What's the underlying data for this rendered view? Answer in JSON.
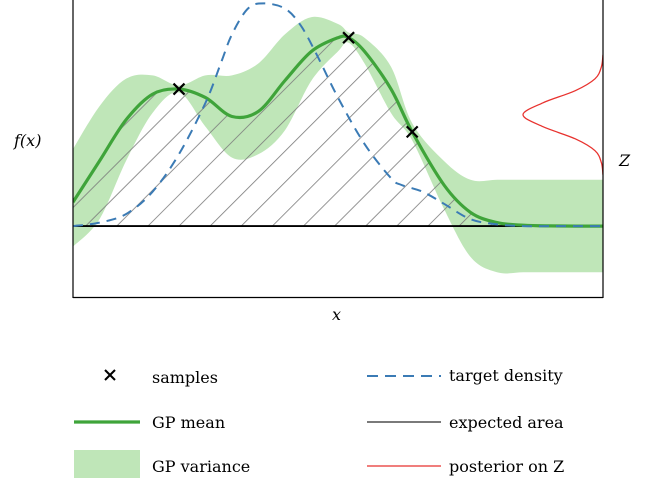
{
  "chart_data": {
    "type": "area",
    "title": "",
    "xlabel": "x",
    "ylabel": "f(x)",
    "side_label": "Z",
    "xlim": [
      0,
      1
    ],
    "ylim": [
      -0.42,
      1.32
    ],
    "baseline": 0,
    "grid": false,
    "legend_position": "bottom",
    "samples": {
      "x": [
        0.2,
        0.52,
        0.64
      ],
      "y": [
        0.8,
        1.1,
        0.55
      ]
    },
    "gp_mean": {
      "x": [
        0,
        0.05,
        0.1,
        0.15,
        0.2,
        0.25,
        0.3,
        0.35,
        0.4,
        0.45,
        0.5,
        0.52,
        0.55,
        0.6,
        0.64,
        0.7,
        0.75,
        0.8,
        0.85,
        0.9,
        0.95,
        1
      ],
      "y": [
        0.14,
        0.38,
        0.62,
        0.77,
        0.8,
        0.75,
        0.64,
        0.67,
        0.85,
        1.02,
        1.1,
        1.1,
        1.02,
        0.8,
        0.55,
        0.24,
        0.08,
        0.02,
        0.005,
        0.001,
        0,
        0
      ]
    },
    "gp_variance": {
      "x": [
        0,
        0.05,
        0.1,
        0.15,
        0.2,
        0.25,
        0.3,
        0.35,
        0.4,
        0.45,
        0.5,
        0.52,
        0.55,
        0.6,
        0.64,
        0.7,
        0.75,
        0.8,
        0.85,
        0.9,
        0.95,
        1
      ],
      "upper": [
        0.45,
        0.7,
        0.86,
        0.88,
        0.82,
        0.88,
        0.88,
        0.95,
        1.12,
        1.22,
        1.18,
        1.13,
        1.1,
        0.93,
        0.6,
        0.38,
        0.27,
        0.27,
        0.27,
        0.27,
        0.27,
        0.27
      ],
      "lower": [
        -0.12,
        0.04,
        0.38,
        0.66,
        0.78,
        0.58,
        0.4,
        0.42,
        0.56,
        0.85,
        1.02,
        1.07,
        0.95,
        0.66,
        0.5,
        0.1,
        -0.18,
        -0.27,
        -0.27,
        -0.27,
        -0.27,
        -0.27
      ]
    },
    "target_density": {
      "x": [
        0,
        0.05,
        0.1,
        0.15,
        0.2,
        0.25,
        0.28,
        0.3,
        0.33,
        0.36,
        0.4,
        0.43,
        0.46,
        0.5,
        0.55,
        0.6,
        0.62,
        0.66,
        0.7,
        0.75,
        0.8,
        0.85,
        0.9,
        0.95,
        1
      ],
      "y": [
        0,
        0.02,
        0.07,
        0.2,
        0.42,
        0.72,
        0.96,
        1.12,
        1.27,
        1.3,
        1.27,
        1.17,
        1.0,
        0.75,
        0.48,
        0.28,
        0.24,
        0.2,
        0.13,
        0.04,
        0.01,
        0,
        0,
        0,
        0
      ]
    },
    "posterior_on_z": {
      "density": [
        0,
        0.02,
        0.1,
        0.35,
        0.75,
        1.0,
        0.75,
        0.35,
        0.1,
        0.02,
        0
      ],
      "z": [
        1.0,
        0.93,
        0.86,
        0.79,
        0.72,
        0.65,
        0.58,
        0.51,
        0.44,
        0.37,
        0.3
      ]
    },
    "colors": {
      "gp_mean": "#3fa43a",
      "gp_variance": "#bfe6b8",
      "target_density": "#3b7bb5",
      "expected_area": "#7a7a7a",
      "posterior": "#e8322e",
      "samples": "#000000"
    },
    "legend": [
      {
        "key": "samples",
        "label": "samples"
      },
      {
        "key": "gp_mean",
        "label": "GP mean"
      },
      {
        "key": "gp_variance",
        "label": "GP variance"
      },
      {
        "key": "target_density",
        "label": "target density"
      },
      {
        "key": "expected_area",
        "label": "expected area"
      },
      {
        "key": "posterior",
        "label": "posterior on Z"
      }
    ]
  }
}
